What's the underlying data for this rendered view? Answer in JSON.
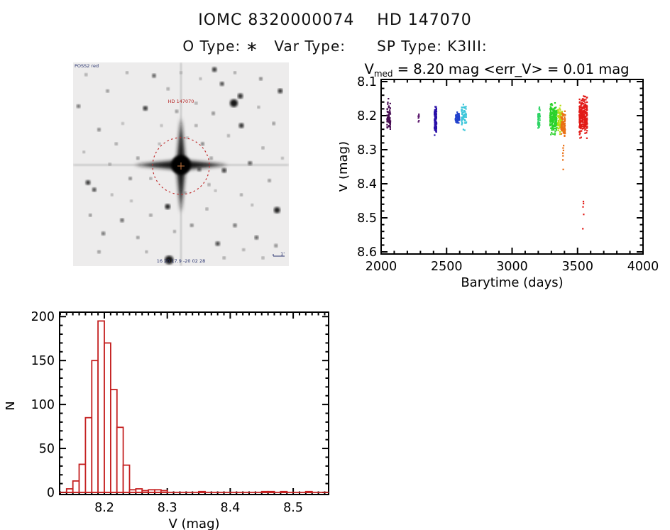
{
  "header": {
    "title": "IOMC 8320000074    HD 147070",
    "subtitle": "O Type: ∗   Var Type:      SP Type: K3III:"
  },
  "finder": {
    "survey_label": "POSS2 red",
    "target_label": "HD 147070",
    "coords_label": "16 20 17.9  -20 02 28",
    "scale_label": "1'",
    "circle_color": "#c03030",
    "stars": [
      [
        74.5,
        20,
        5.5,
        0.95
      ],
      [
        77.5,
        16.5,
        3.8,
        0.85
      ],
      [
        78,
        31,
        3.6,
        0.85
      ],
      [
        69,
        10.5,
        3,
        0.8
      ],
      [
        33.5,
        22.5,
        3.4,
        0.85
      ],
      [
        43.8,
        70.8,
        3.8,
        0.9
      ],
      [
        6.9,
        59,
        3.4,
        0.85
      ],
      [
        9.8,
        62.5,
        3,
        0.8
      ],
      [
        70,
        53,
        3.4,
        0.8
      ],
      [
        82,
        49.5,
        3,
        0.75
      ],
      [
        94.5,
        72.5,
        4.4,
        0.9
      ],
      [
        44.5,
        97,
        6,
        0.95
      ],
      [
        22.7,
        77.5,
        2.8,
        0.7
      ],
      [
        67,
        89,
        3.2,
        0.8
      ],
      [
        96,
        14,
        3.4,
        0.85
      ],
      [
        65.5,
        3.5,
        3.4,
        0.85
      ],
      [
        37.5,
        6.5,
        2.8,
        0.75
      ],
      [
        16,
        14,
        2.2,
        0.6
      ],
      [
        2.5,
        21.5,
        2.6,
        0.7
      ],
      [
        87,
        8,
        2.4,
        0.65
      ],
      [
        93,
        30,
        2.2,
        0.6
      ],
      [
        12,
        33,
        2.4,
        0.65
      ],
      [
        20,
        40,
        2,
        0.55
      ],
      [
        30,
        47,
        2.2,
        0.6
      ],
      [
        26.5,
        57,
        2.4,
        0.65
      ],
      [
        36,
        57,
        2,
        0.55
      ],
      [
        8,
        75,
        2.2,
        0.6
      ],
      [
        14,
        84,
        2.6,
        0.7
      ],
      [
        30,
        86,
        2.2,
        0.6
      ],
      [
        55,
        80,
        2.4,
        0.65
      ],
      [
        62,
        72,
        2,
        0.55
      ],
      [
        75,
        80,
        2.6,
        0.7
      ],
      [
        85,
        86,
        2.8,
        0.75
      ],
      [
        94,
        90,
        2.4,
        0.6
      ],
      [
        91,
        58,
        2.2,
        0.6
      ],
      [
        88,
        42,
        2,
        0.55
      ],
      [
        60,
        40,
        2.4,
        0.65
      ],
      [
        57,
        31,
        2,
        0.55
      ],
      [
        48,
        24,
        2.2,
        0.6
      ],
      [
        57,
        20,
        2,
        0.5
      ],
      [
        44,
        13,
        2,
        0.55
      ],
      [
        25,
        5,
        2,
        0.5
      ],
      [
        6,
        6,
        2,
        0.5
      ],
      [
        5,
        44,
        1.8,
        0.5
      ],
      [
        18,
        65,
        1.8,
        0.5
      ],
      [
        40,
        40,
        1.8,
        0.5
      ],
      [
        63,
        60,
        2,
        0.55
      ],
      [
        78,
        65,
        2,
        0.55
      ],
      [
        83,
        70,
        1.8,
        0.5
      ],
      [
        52,
        64,
        1.8,
        0.5
      ],
      [
        47,
        83,
        2,
        0.55
      ],
      [
        34,
        93,
        2,
        0.5
      ],
      [
        12,
        93,
        2.2,
        0.6
      ],
      [
        70,
        96,
        2,
        0.55
      ],
      [
        88,
        96,
        2,
        0.5
      ],
      [
        97,
        47,
        1.8,
        0.5
      ],
      [
        59,
        8,
        1.8,
        0.5
      ],
      [
        75,
        5,
        2,
        0.55
      ],
      [
        50,
        5,
        1.8,
        0.45
      ],
      [
        65,
        25,
        2.4,
        0.6
      ],
      [
        72,
        36,
        2,
        0.5
      ],
      [
        53,
        37,
        1.8,
        0.45
      ],
      [
        64,
        47,
        2.2,
        0.55
      ],
      [
        58.5,
        52.5,
        2.8,
        0.7
      ],
      [
        66,
        63,
        1.8,
        0.45
      ],
      [
        23,
        30,
        1.8,
        0.45
      ],
      [
        17,
        50,
        2,
        0.5
      ],
      [
        36,
        75,
        2.2,
        0.55
      ],
      [
        27,
        68,
        1.8,
        0.45
      ],
      [
        41,
        31,
        1.8,
        0.45
      ],
      [
        86,
        22,
        2,
        0.5
      ],
      [
        79,
        92,
        2,
        0.5
      ]
    ]
  },
  "chart_data": [
    {
      "type": "scatter",
      "name": "lightcurve",
      "title_pre": "V",
      "title_sub": "med",
      "title_post": " = 8.20 mag <err_V> = 0.01 mag",
      "xlabel": "Barytime (days)",
      "ylabel": "V (mag)",
      "xlim": [
        2000,
        4000
      ],
      "ylim": [
        8.1,
        8.6
      ],
      "y_inverted": true,
      "xticks": [
        2000,
        2500,
        3000,
        3500,
        4000
      ],
      "yticks": [
        8.1,
        8.2,
        8.3,
        8.4,
        8.5,
        8.6
      ],
      "x_minor_step": 100,
      "y_minor_step": 0.02,
      "grid": false,
      "legend": "none",
      "clusters": [
        {
          "t": [
            2044,
            2072
          ],
          "mag": [
            8.15,
            8.25
          ],
          "n": 65,
          "color": "#470b52"
        },
        {
          "t": [
            2282,
            2292
          ],
          "mag": [
            8.18,
            8.225
          ],
          "n": 9,
          "color": "#5c1a6e"
        },
        {
          "t": [
            2406,
            2424
          ],
          "mag": [
            8.163,
            8.262
          ],
          "n": 95,
          "color": "#2a10a8"
        },
        {
          "t": [
            2564,
            2602
          ],
          "mag": [
            8.188,
            8.222
          ],
          "n": 55,
          "color": "#2040cc"
        },
        {
          "t": [
            2612,
            2656
          ],
          "mag": [
            8.16,
            8.245
          ],
          "n": 55,
          "color": "#3cc6da"
        },
        {
          "t": [
            3196,
            3214
          ],
          "mag": [
            8.172,
            8.248
          ],
          "n": 48,
          "color": "#2ed465"
        },
        {
          "t": [
            3288,
            3344
          ],
          "mag": [
            8.155,
            8.262
          ],
          "n": 175,
          "color": "#2bd22b"
        },
        {
          "t": [
            3348,
            3386
          ],
          "mag": [
            8.168,
            8.262
          ],
          "n": 95,
          "color": "#b8dc12"
        },
        {
          "t": [
            3372,
            3408
          ],
          "mag": [
            8.178,
            8.272
          ],
          "n": 95,
          "color": "#ea7014",
          "outliers": [
            8.288,
            8.295,
            8.302,
            8.31,
            8.318,
            8.33,
            8.358
          ]
        },
        {
          "t": [
            3512,
            3576
          ],
          "mag": [
            8.138,
            8.268
          ],
          "n": 265,
          "color": "#e21b17",
          "outliers": [
            8.452,
            8.458,
            8.468,
            8.49,
            8.532
          ]
        }
      ]
    },
    {
      "type": "bar",
      "name": "v-histogram",
      "xlabel": "V (mag)",
      "ylabel": "N",
      "bin_start": 8.14,
      "bin_width": 0.01,
      "values": [
        4,
        13,
        32,
        85,
        150,
        195,
        170,
        117,
        74,
        31,
        3,
        4,
        2,
        3,
        3,
        2,
        0,
        0,
        0,
        0,
        0,
        1,
        0,
        0,
        0,
        0,
        0,
        0,
        0,
        0,
        0,
        1,
        1,
        0,
        1,
        0,
        0,
        0,
        1,
        0
      ],
      "xlim": [
        8.129,
        8.556
      ],
      "ylim": [
        0,
        203
      ],
      "xticks": [
        8.2,
        8.3,
        8.4,
        8.5
      ],
      "yticks": [
        0,
        50,
        100,
        150,
        200
      ],
      "x_minor_step": 0.01,
      "y_minor_step": 10,
      "grid": false,
      "legend": "none",
      "color": "#c42020"
    }
  ]
}
